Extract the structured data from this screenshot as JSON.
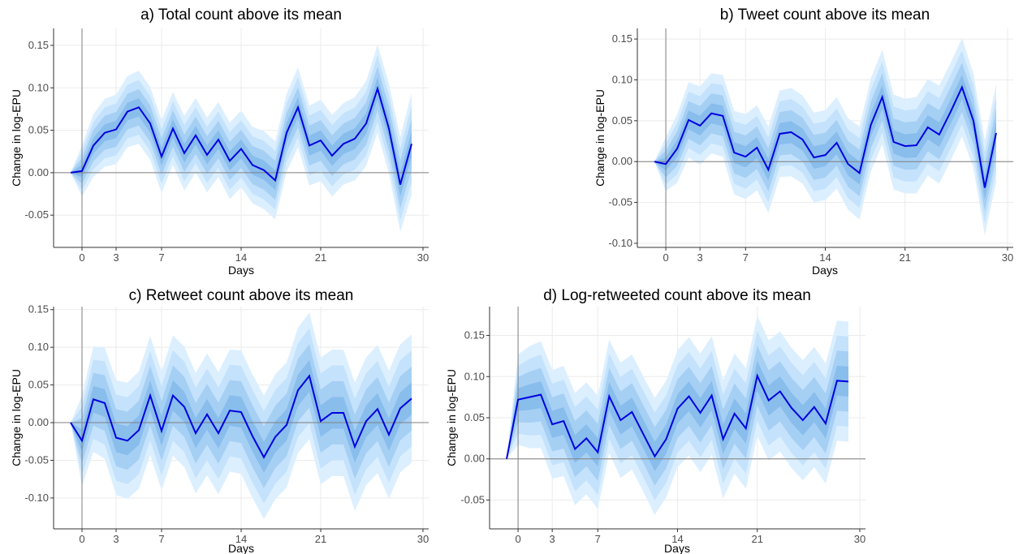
{
  "colors": {
    "band_outer": "#dcefff",
    "band_2": "#c4e2fb",
    "band_3": "#a6cff4",
    "band_inner": "#88bdec",
    "line": "#0000e0",
    "reference": "#7f7f7f"
  },
  "chart_data": [
    {
      "type": "line",
      "title": "a) Total count above its mean",
      "xlabel": "Days",
      "ylabel": "Change in log-EPU",
      "x_ticks": [
        0,
        3,
        7,
        14,
        21,
        30
      ],
      "y_ticks": [
        "-0.05",
        "0.00",
        "0.05",
        "0.10",
        "0.15"
      ],
      "xlim": [
        -2.5,
        30.5
      ],
      "ylim": [
        -0.088,
        0.17
      ],
      "x_start": -1,
      "values": [
        0.0,
        0.002,
        0.032,
        0.047,
        0.051,
        0.072,
        0.077,
        0.058,
        0.019,
        0.052,
        0.023,
        0.044,
        0.021,
        0.039,
        0.014,
        0.028,
        0.009,
        0.003,
        -0.009,
        0.047,
        0.077,
        0.032,
        0.038,
        0.02,
        0.034,
        0.04,
        0.058,
        0.099,
        0.052,
        -0.014,
        0.034
      ],
      "band_halfwidth": [
        0.0,
        0.03,
        0.037,
        0.04,
        0.041,
        0.042,
        0.043,
        0.043,
        0.043,
        0.043,
        0.044,
        0.044,
        0.044,
        0.044,
        0.045,
        0.045,
        0.045,
        0.046,
        0.046,
        0.046,
        0.047,
        0.047,
        0.048,
        0.048,
        0.048,
        0.049,
        0.05,
        0.052,
        0.053,
        0.056,
        0.06
      ],
      "grid": true
    },
    {
      "type": "line",
      "title": "b) Tweet count above its mean",
      "xlabel": "Days",
      "ylabel": "Change in log-EPU",
      "x_ticks": [
        0,
        3,
        7,
        14,
        21,
        30
      ],
      "y_ticks": [
        "-0.10",
        "-0.05",
        "0.00",
        "0.05",
        "0.10",
        "0.15"
      ],
      "xlim": [
        -2.5,
        30.5
      ],
      "ylim": [
        -0.105,
        0.163
      ],
      "x_start": -1,
      "values": [
        0.0,
        -0.003,
        0.016,
        0.051,
        0.044,
        0.059,
        0.056,
        0.011,
        0.006,
        0.017,
        -0.01,
        0.034,
        0.036,
        0.027,
        0.005,
        0.008,
        0.023,
        -0.003,
        -0.014,
        0.045,
        0.079,
        0.024,
        0.019,
        0.02,
        0.042,
        0.033,
        0.061,
        0.091,
        0.05,
        -0.032,
        0.035
      ],
      "band_halfwidth": [
        0.0,
        0.033,
        0.042,
        0.046,
        0.048,
        0.049,
        0.05,
        0.051,
        0.052,
        0.052,
        0.053,
        0.053,
        0.054,
        0.054,
        0.055,
        0.055,
        0.056,
        0.056,
        0.057,
        0.057,
        0.058,
        0.058,
        0.058,
        0.059,
        0.059,
        0.06,
        0.06,
        0.06,
        0.058,
        0.058,
        0.06
      ],
      "grid": true
    },
    {
      "type": "line",
      "title": "c) Retweet count above its mean",
      "xlabel": "Days",
      "ylabel": "Change in log-EPU",
      "x_ticks": [
        0,
        3,
        7,
        14,
        21,
        30
      ],
      "y_ticks": [
        "-0.10",
        "-0.05",
        "0.00",
        "0.05",
        "0.10",
        "0.15"
      ],
      "xlim": [
        -2.5,
        30.5
      ],
      "ylim": [
        -0.141,
        0.154
      ],
      "x_start": -1,
      "values": [
        0.0,
        -0.024,
        0.031,
        0.026,
        -0.02,
        -0.024,
        -0.01,
        0.036,
        -0.011,
        0.036,
        0.021,
        -0.014,
        0.011,
        -0.014,
        0.016,
        0.014,
        -0.018,
        -0.046,
        -0.019,
        -0.003,
        0.043,
        0.062,
        0.002,
        0.013,
        0.013,
        -0.032,
        0.002,
        0.018,
        -0.016,
        0.019,
        0.032
      ],
      "band_halfwidth": [
        0.0,
        0.06,
        0.07,
        0.074,
        0.076,
        0.077,
        0.078,
        0.079,
        0.079,
        0.08,
        0.08,
        0.08,
        0.081,
        0.081,
        0.081,
        0.082,
        0.082,
        0.082,
        0.083,
        0.083,
        0.083,
        0.084,
        0.084,
        0.084,
        0.084,
        0.085,
        0.085,
        0.085,
        0.085,
        0.085,
        0.085
      ],
      "grid": true
    },
    {
      "type": "line",
      "title": "d) Log-retweeted count above its mean",
      "xlabel": "Days",
      "ylabel": "Change in log-EPU",
      "x_ticks": [
        0,
        3,
        7,
        14,
        21,
        30
      ],
      "y_ticks": [
        "-0.05",
        "0.00",
        "0.05",
        "0.10",
        "0.15"
      ],
      "xlim": [
        -2.5,
        30.5
      ],
      "ylim": [
        -0.085,
        0.185
      ],
      "x_start": -1,
      "values": [
        0.0,
        0.072,
        0.075,
        0.078,
        0.042,
        0.046,
        0.012,
        0.025,
        0.008,
        0.076,
        0.047,
        0.057,
        0.03,
        0.003,
        0.024,
        0.061,
        0.076,
        0.056,
        0.077,
        0.024,
        0.055,
        0.037,
        0.101,
        0.071,
        0.082,
        0.062,
        0.047,
        0.063,
        0.043,
        0.095,
        0.094
      ],
      "band_halfwidth": [
        0.0,
        0.055,
        0.062,
        0.065,
        0.066,
        0.067,
        0.068,
        0.068,
        0.069,
        0.069,
        0.07,
        0.07,
        0.07,
        0.071,
        0.071,
        0.071,
        0.072,
        0.072,
        0.072,
        0.072,
        0.073,
        0.073,
        0.073,
        0.073,
        0.073,
        0.073,
        0.073,
        0.073,
        0.073,
        0.073,
        0.073
      ],
      "grid": true
    }
  ]
}
